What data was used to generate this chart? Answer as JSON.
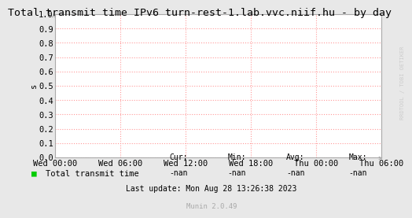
{
  "title": "Total transmit time IPv6 turn-rest-1.lab.vvc.niif.hu - by day",
  "ylabel": "s",
  "bg_color": "#e8e8e8",
  "plot_bg_color": "#ffffff",
  "grid_color": "#ff9999",
  "border_color": "#aaaaaa",
  "ylim": [
    0.0,
    1.0
  ],
  "yticks": [
    0.0,
    0.1,
    0.2,
    0.3,
    0.4,
    0.5,
    0.6,
    0.7,
    0.8,
    0.9,
    1.0
  ],
  "xtick_labels": [
    "Wed 00:00",
    "Wed 06:00",
    "Wed 12:00",
    "Wed 18:00",
    "Thu 00:00",
    "Thu 06:00"
  ],
  "legend_label": "Total transmit time",
  "legend_color": "#00cc00",
  "cur_val": "-nan",
  "min_val": "-nan",
  "avg_val": "-nan",
  "max_val": "-nan",
  "last_update": "Last update: Mon Aug 28 13:26:38 2023",
  "munin_version": "Munin 2.0.49",
  "rrdtool_text": "RRDTOOL / TOBI OETIKER",
  "title_fontsize": 9.5,
  "axis_fontsize": 7.5,
  "legend_fontsize": 7.5,
  "footer_fontsize": 7.0
}
